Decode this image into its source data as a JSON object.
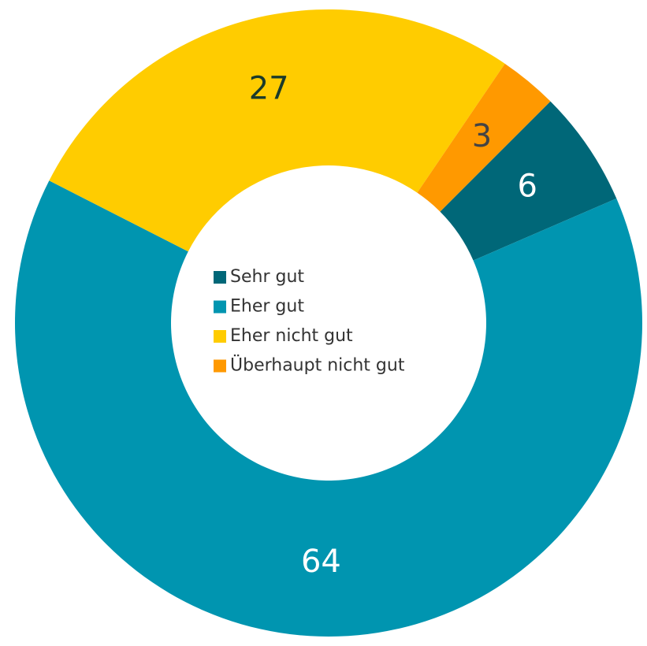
{
  "chart_data": {
    "type": "donut",
    "categories": [
      "Sehr gut",
      "Eher gut",
      "Eher nicht gut",
      "Überhaupt nicht gut"
    ],
    "values": [
      6,
      64,
      27,
      3
    ],
    "colors": [
      "#006778",
      "#0095b0",
      "#ffcc00",
      "#ff9900"
    ],
    "label_colors": [
      "#ffffff",
      "#ffffff",
      "#1a3a2a",
      "#444444"
    ],
    "legend": "center"
  }
}
